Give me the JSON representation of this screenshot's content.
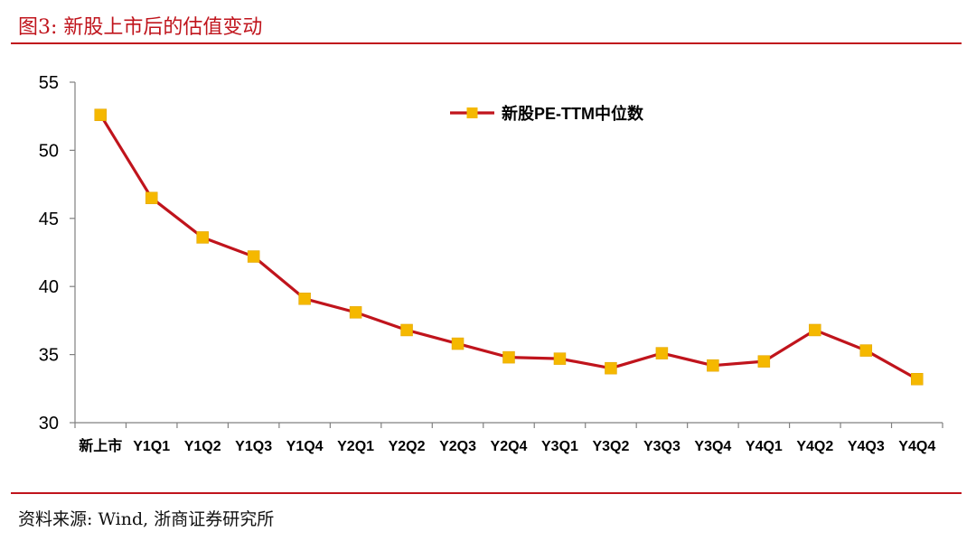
{
  "figure": {
    "title": "图3:  新股上市后的估值变动",
    "source": "资料来源:  Wind,  浙商证券研究所"
  },
  "colors": {
    "accent": "#c0141c",
    "line": "#c0141c",
    "marker": "#f5b800"
  },
  "chart_data": {
    "type": "line",
    "title": "",
    "xlabel": "",
    "ylabel": "",
    "categories": [
      "新上市",
      "Y1Q1",
      "Y1Q2",
      "Y1Q3",
      "Y1Q4",
      "Y2Q1",
      "Y2Q2",
      "Y2Q3",
      "Y2Q4",
      "Y3Q1",
      "Y3Q2",
      "Y3Q3",
      "Y3Q4",
      "Y4Q1",
      "Y4Q2",
      "Y4Q3",
      "Y4Q4"
    ],
    "series": [
      {
        "name": "新股PE-TTM中位数",
        "values": [
          52.6,
          46.5,
          43.6,
          42.2,
          39.1,
          38.1,
          36.8,
          35.8,
          34.8,
          34.7,
          34.0,
          35.1,
          34.2,
          34.5,
          36.8,
          35.3,
          33.2
        ]
      }
    ],
    "ylim": [
      30,
      55
    ],
    "yticks": [
      30,
      35,
      40,
      45,
      50,
      55
    ],
    "grid": false,
    "legend_position": "top-center"
  }
}
